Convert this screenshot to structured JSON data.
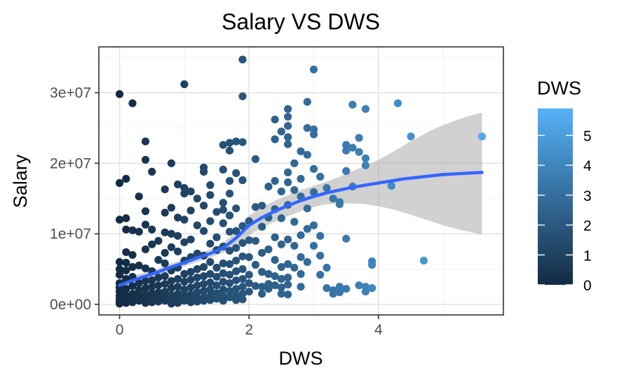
{
  "chart_data": {
    "type": "scatter",
    "title": "Salary VS DWS",
    "xlabel": "DWS",
    "ylabel": "Salary",
    "xlim": [
      -0.32,
      5.93
    ],
    "ylim": [
      -1500000,
      36500000
    ],
    "x_ticks": [
      0,
      2,
      4
    ],
    "x_tick_labels": [
      "0",
      "2",
      "4"
    ],
    "y_ticks": [
      0,
      10000000,
      20000000,
      30000000
    ],
    "y_tick_labels": [
      "0e+00",
      "1e+07",
      "2e+07",
      "3e+07"
    ],
    "grid": true,
    "theme": "bw",
    "legend": {
      "title": "DWS",
      "position": "right",
      "type": "colorbar",
      "range": [
        0,
        5.9
      ],
      "ticks": [
        0,
        1,
        2,
        3,
        4,
        5
      ],
      "tick_labels": [
        "0",
        "1",
        "2",
        "3",
        "4",
        "5"
      ],
      "color_low": "#132B43",
      "color_high": "#56B1F7"
    },
    "points": [
      [
        0,
        29800000
      ],
      [
        0,
        17200000
      ],
      [
        0,
        12000000
      ],
      [
        0,
        6000000
      ],
      [
        0,
        5000000
      ],
      [
        0,
        4200000
      ],
      [
        0,
        3000000
      ],
      [
        0,
        2400000
      ],
      [
        0,
        1800000
      ],
      [
        0,
        1200000
      ],
      [
        0,
        700000
      ],
      [
        0,
        300000
      ],
      [
        0,
        100000
      ],
      [
        0.1,
        17800000
      ],
      [
        0.1,
        12200000
      ],
      [
        0.1,
        10600000
      ],
      [
        0.1,
        7400000
      ],
      [
        0.1,
        5900000
      ],
      [
        0.1,
        4800000
      ],
      [
        0.1,
        3600000
      ],
      [
        0.1,
        2200000
      ],
      [
        0.1,
        1300000
      ],
      [
        0.1,
        600000
      ],
      [
        0.1,
        200000
      ],
      [
        0.2,
        28500000
      ],
      [
        0.2,
        10500000
      ],
      [
        0.2,
        7000000
      ],
      [
        0.2,
        5300000
      ],
      [
        0.2,
        3900000
      ],
      [
        0.2,
        2600000
      ],
      [
        0.2,
        1500000
      ],
      [
        0.2,
        800000
      ],
      [
        0.2,
        300000
      ],
      [
        0.3,
        15300000
      ],
      [
        0.3,
        10300000
      ],
      [
        0.3,
        5500000
      ],
      [
        0.3,
        3000000
      ],
      [
        0.3,
        2000000
      ],
      [
        0.3,
        1200000
      ],
      [
        0.3,
        500000
      ],
      [
        0.4,
        23100000
      ],
      [
        0.4,
        20500000
      ],
      [
        0.4,
        13200000
      ],
      [
        0.4,
        11300000
      ],
      [
        0.4,
        7800000
      ],
      [
        0.4,
        5100000
      ],
      [
        0.4,
        3300000
      ],
      [
        0.4,
        2300000
      ],
      [
        0.4,
        1400000
      ],
      [
        0.4,
        700000
      ],
      [
        0.4,
        200000
      ],
      [
        0.5,
        18800000
      ],
      [
        0.5,
        10600000
      ],
      [
        0.5,
        8500000
      ],
      [
        0.5,
        4700000
      ],
      [
        0.5,
        3400000
      ],
      [
        0.5,
        2500000
      ],
      [
        0.5,
        1600000
      ],
      [
        0.5,
        900000
      ],
      [
        0.5,
        300000
      ],
      [
        0.6,
        9000000
      ],
      [
        0.6,
        6300000
      ],
      [
        0.6,
        3800000
      ],
      [
        0.6,
        2700000
      ],
      [
        0.6,
        1700000
      ],
      [
        0.6,
        1000000
      ],
      [
        0.6,
        400000
      ],
      [
        0.7,
        16300000
      ],
      [
        0.7,
        13000000
      ],
      [
        0.7,
        10200000
      ],
      [
        0.7,
        7300000
      ],
      [
        0.7,
        5800000
      ],
      [
        0.7,
        4000000
      ],
      [
        0.7,
        2900000
      ],
      [
        0.7,
        1800000
      ],
      [
        0.7,
        1100000
      ],
      [
        0.7,
        500000
      ],
      [
        0.8,
        20000000
      ],
      [
        0.8,
        13700000
      ],
      [
        0.8,
        10000000
      ],
      [
        0.8,
        8100000
      ],
      [
        0.8,
        4800000
      ],
      [
        0.8,
        3300000
      ],
      [
        0.8,
        2300000
      ],
      [
        0.8,
        1300000
      ],
      [
        0.8,
        600000
      ],
      [
        0.8,
        100000
      ],
      [
        0.9,
        17000000
      ],
      [
        0.9,
        12300000
      ],
      [
        0.9,
        9700000
      ],
      [
        0.9,
        7500000
      ],
      [
        0.9,
        5200000
      ],
      [
        0.9,
        3600000
      ],
      [
        0.9,
        2500000
      ],
      [
        0.9,
        1500000
      ],
      [
        0.9,
        700000
      ],
      [
        0.9,
        200000
      ],
      [
        1.0,
        31200000
      ],
      [
        1.0,
        16500000
      ],
      [
        1.0,
        15700000
      ],
      [
        1.0,
        12000000
      ],
      [
        1.0,
        8800000
      ],
      [
        1.0,
        6200000
      ],
      [
        1.0,
        4300000
      ],
      [
        1.0,
        3200000
      ],
      [
        1.0,
        2100000
      ],
      [
        1.0,
        1200000
      ],
      [
        1.0,
        500000
      ],
      [
        1.1,
        16000000
      ],
      [
        1.1,
        13300000
      ],
      [
        1.1,
        9200000
      ],
      [
        1.1,
        6700000
      ],
      [
        1.1,
        4600000
      ],
      [
        1.1,
        3500000
      ],
      [
        1.1,
        2400000
      ],
      [
        1.1,
        1400000
      ],
      [
        1.1,
        800000
      ],
      [
        1.1,
        300000
      ],
      [
        1.2,
        15000000
      ],
      [
        1.2,
        11200000
      ],
      [
        1.2,
        7200000
      ],
      [
        1.2,
        5000000
      ],
      [
        1.2,
        3800000
      ],
      [
        1.2,
        2700000
      ],
      [
        1.2,
        1700000
      ],
      [
        1.2,
        900000
      ],
      [
        1.2,
        400000
      ],
      [
        1.3,
        19400000
      ],
      [
        1.3,
        18800000
      ],
      [
        1.3,
        14000000
      ],
      [
        1.3,
        10400000
      ],
      [
        1.3,
        6900000
      ],
      [
        1.3,
        5300000
      ],
      [
        1.3,
        4000000
      ],
      [
        1.3,
        2900000
      ],
      [
        1.3,
        1900000
      ],
      [
        1.3,
        1000000
      ],
      [
        1.3,
        500000
      ],
      [
        1.4,
        16900000
      ],
      [
        1.4,
        15500000
      ],
      [
        1.4,
        11800000
      ],
      [
        1.4,
        8600000
      ],
      [
        1.4,
        6000000
      ],
      [
        1.4,
        4300000
      ],
      [
        1.4,
        3100000
      ],
      [
        1.4,
        2100000
      ],
      [
        1.4,
        1200000
      ],
      [
        1.4,
        600000
      ],
      [
        1.5,
        13100000
      ],
      [
        1.5,
        9500000
      ],
      [
        1.5,
        7700000
      ],
      [
        1.5,
        5200000
      ],
      [
        1.5,
        3900000
      ],
      [
        1.5,
        2700000
      ],
      [
        1.5,
        1600000
      ],
      [
        1.5,
        800000
      ],
      [
        1.6,
        22600000
      ],
      [
        1.6,
        19100000
      ],
      [
        1.6,
        14400000
      ],
      [
        1.6,
        13400000
      ],
      [
        1.6,
        11500000
      ],
      [
        1.6,
        8200000
      ],
      [
        1.6,
        5800000
      ],
      [
        1.6,
        4400000
      ],
      [
        1.6,
        3200000
      ],
      [
        1.6,
        2100000
      ],
      [
        1.6,
        1200000
      ],
      [
        1.6,
        500000
      ],
      [
        1.7,
        22900000
      ],
      [
        1.7,
        21800000
      ],
      [
        1.7,
        17500000
      ],
      [
        1.7,
        15700000
      ],
      [
        1.7,
        12600000
      ],
      [
        1.7,
        10300000
      ],
      [
        1.7,
        7600000
      ],
      [
        1.7,
        5700000
      ],
      [
        1.7,
        4200000
      ],
      [
        1.7,
        3000000
      ],
      [
        1.7,
        1900000
      ],
      [
        1.7,
        1000000
      ],
      [
        1.8,
        23100000
      ],
      [
        1.8,
        18600000
      ],
      [
        1.8,
        13600000
      ],
      [
        1.8,
        10400000
      ],
      [
        1.8,
        8000000
      ],
      [
        1.8,
        6200000
      ],
      [
        1.8,
        4700000
      ],
      [
        1.8,
        3400000
      ],
      [
        1.8,
        2200000
      ],
      [
        1.8,
        1300000
      ],
      [
        1.8,
        600000
      ],
      [
        1.9,
        34700000
      ],
      [
        1.9,
        29500000
      ],
      [
        1.9,
        23000000
      ],
      [
        1.9,
        17600000
      ],
      [
        1.9,
        11100000
      ],
      [
        1.9,
        8700000
      ],
      [
        1.9,
        6800000
      ],
      [
        1.9,
        5000000
      ],
      [
        1.9,
        3600000
      ],
      [
        1.9,
        2500000
      ],
      [
        1.9,
        1500000
      ],
      [
        1.9,
        700000
      ],
      [
        2.0,
        11800000
      ],
      [
        2.0,
        9100000
      ],
      [
        2.0,
        6700000
      ],
      [
        2.0,
        4200000
      ],
      [
        2.0,
        3000000
      ],
      [
        2.0,
        1800000
      ],
      [
        2.1,
        20600000
      ],
      [
        2.1,
        13800000
      ],
      [
        2.1,
        9000000
      ],
      [
        2.1,
        5600000
      ],
      [
        2.1,
        2600000
      ],
      [
        2.2,
        14000000
      ],
      [
        2.2,
        11000000
      ],
      [
        2.2,
        7300000
      ],
      [
        2.2,
        4600000
      ],
      [
        2.2,
        2500000
      ],
      [
        2.2,
        1500000
      ],
      [
        2.3,
        16700000
      ],
      [
        2.3,
        12300000
      ],
      [
        2.3,
        7800000
      ],
      [
        2.3,
        4300000
      ],
      [
        2.3,
        2900000
      ],
      [
        2.3,
        2200000
      ],
      [
        2.4,
        26200000
      ],
      [
        2.4,
        23400000
      ],
      [
        2.4,
        17500000
      ],
      [
        2.4,
        13500000
      ],
      [
        2.4,
        9500000
      ],
      [
        2.4,
        6300000
      ],
      [
        2.4,
        4000000
      ],
      [
        2.4,
        2700000
      ],
      [
        2.5,
        24500000
      ],
      [
        2.5,
        16000000
      ],
      [
        2.5,
        12200000
      ],
      [
        2.5,
        8500000
      ],
      [
        2.5,
        5300000
      ],
      [
        2.5,
        3600000
      ],
      [
        2.5,
        2400000
      ],
      [
        2.5,
        1500000
      ],
      [
        2.6,
        27700000
      ],
      [
        2.6,
        26600000
      ],
      [
        2.6,
        25300000
      ],
      [
        2.6,
        23700000
      ],
      [
        2.6,
        22700000
      ],
      [
        2.6,
        18700000
      ],
      [
        2.6,
        17300000
      ],
      [
        2.6,
        14100000
      ],
      [
        2.6,
        9200000
      ],
      [
        2.6,
        5700000
      ],
      [
        2.6,
        3800000
      ],
      [
        2.6,
        2800000
      ],
      [
        2.6,
        1400000
      ],
      [
        2.7,
        20000000
      ],
      [
        2.7,
        16200000
      ],
      [
        2.7,
        11700000
      ],
      [
        2.7,
        8300000
      ],
      [
        2.7,
        5200000
      ],
      [
        2.8,
        21700000
      ],
      [
        2.8,
        17800000
      ],
      [
        2.8,
        15300000
      ],
      [
        2.8,
        9800000
      ],
      [
        2.8,
        6700000
      ],
      [
        2.8,
        4300000
      ],
      [
        2.8,
        2500000
      ],
      [
        2.9,
        28700000
      ],
      [
        2.9,
        25000000
      ],
      [
        2.9,
        21200000
      ],
      [
        2.9,
        13600000
      ],
      [
        2.9,
        10700000
      ],
      [
        2.9,
        6000000
      ],
      [
        3.0,
        33300000
      ],
      [
        3.0,
        24800000
      ],
      [
        3.0,
        24100000
      ],
      [
        3.0,
        19200000
      ],
      [
        3.0,
        15900000
      ],
      [
        3.0,
        11200000
      ],
      [
        3.0,
        8300000
      ],
      [
        3.1,
        18100000
      ],
      [
        3.1,
        9700000
      ],
      [
        3.1,
        6900000
      ],
      [
        3.1,
        4200000
      ],
      [
        3.2,
        16500000
      ],
      [
        3.2,
        5200000
      ],
      [
        3.2,
        2300000
      ],
      [
        3.3,
        15000000
      ],
      [
        3.3,
        2000000
      ],
      [
        3.3,
        1500000
      ],
      [
        3.4,
        14500000
      ],
      [
        3.4,
        14200000
      ],
      [
        3.4,
        2500000
      ],
      [
        3.4,
        1700000
      ],
      [
        3.5,
        22600000
      ],
      [
        3.5,
        21800000
      ],
      [
        3.5,
        18900000
      ],
      [
        3.5,
        9300000
      ],
      [
        3.5,
        2200000
      ],
      [
        3.6,
        28300000
      ],
      [
        3.6,
        22200000
      ],
      [
        3.6,
        16700000
      ],
      [
        3.7,
        23600000
      ],
      [
        3.7,
        21600000
      ],
      [
        3.7,
        2700000
      ],
      [
        3.8,
        27700000
      ],
      [
        3.8,
        20700000
      ],
      [
        3.8,
        19700000
      ],
      [
        3.8,
        2500000
      ],
      [
        3.8,
        1800000
      ],
      [
        3.9,
        6100000
      ],
      [
        3.9,
        5600000
      ],
      [
        3.9,
        2300000
      ],
      [
        4.3,
        28500000
      ],
      [
        4.2,
        16800000
      ],
      [
        4.5,
        23800000
      ],
      [
        4.7,
        6200000
      ],
      [
        5.6,
        23800000
      ]
    ],
    "smooth_fit": {
      "method": "loess",
      "x": [
        0,
        0.2,
        0.4,
        0.6,
        0.8,
        1.0,
        1.2,
        1.4,
        1.6,
        1.8,
        2.0,
        2.2,
        2.4,
        2.6,
        2.8,
        3.0,
        3.2,
        3.4,
        3.6,
        3.8,
        4.0,
        4.2,
        4.4,
        4.6,
        4.8,
        5.0,
        5.2,
        5.4,
        5.6
      ],
      "y": [
        2700000,
        3400000,
        4000000,
        4600000,
        5300000,
        5900000,
        6600000,
        7200000,
        8000000,
        9400000,
        11200000,
        12300000,
        13200000,
        14000000,
        14700000,
        15300000,
        15800000,
        16200000,
        16600000,
        16900000,
        17200000,
        17500000,
        17800000,
        18000000,
        18200000,
        18400000,
        18500000,
        18600000,
        18700000
      ],
      "lower": [
        1800000,
        2700000,
        3500000,
        4100000,
        4800000,
        5400000,
        6000000,
        6600000,
        7300000,
        8500000,
        9800000,
        10900000,
        11700000,
        12500000,
        13200000,
        13800000,
        14200000,
        14300000,
        14300000,
        14200000,
        13900000,
        13500000,
        13000000,
        12400000,
        11800000,
        11200000,
        10700000,
        10300000,
        9900000
      ],
      "upper": [
        3600000,
        4100000,
        4500000,
        5100000,
        5800000,
        6400000,
        7200000,
        7800000,
        8700000,
        10300000,
        12600000,
        13700000,
        14700000,
        15500000,
        16200000,
        16800000,
        17400000,
        18100000,
        18900000,
        19600000,
        20500000,
        21500000,
        22600000,
        23600000,
        24600000,
        25400000,
        26100000,
        26700000,
        27200000
      ],
      "line_color": "#3366FF",
      "band_color": "#999999"
    }
  }
}
